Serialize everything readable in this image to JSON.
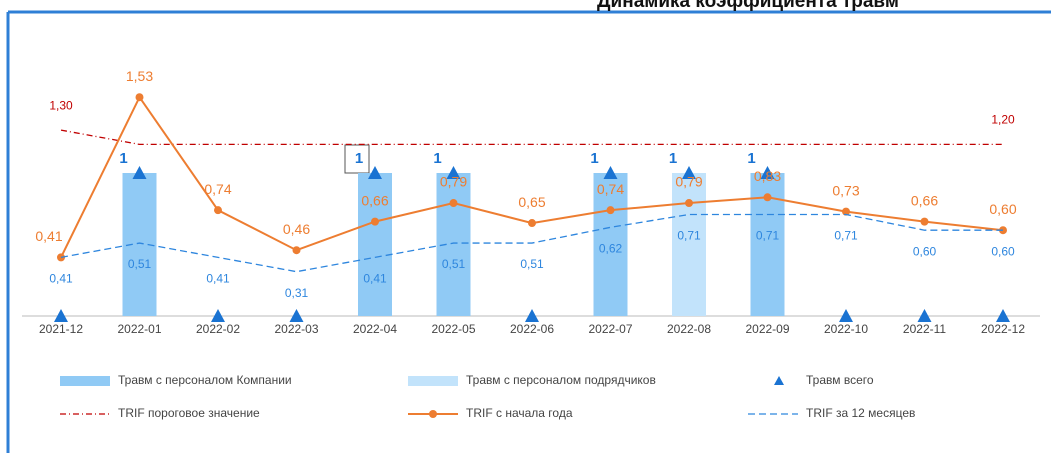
{
  "chart_data": {
    "type": "bar",
    "title": "Динамика коэффициента травм",
    "categories": [
      "2021-12",
      "2022-01",
      "2022-02",
      "2022-03",
      "2022-04",
      "2022-05",
      "2022-06",
      "2022-07",
      "2022-08",
      "2022-09",
      "2022-10",
      "2022-11",
      "2022-12"
    ],
    "ylim": [
      0,
      2
    ],
    "y2lim": [
      0,
      2
    ],
    "series": [
      {
        "name": "Травм с персоналом Компании",
        "type": "bar",
        "color": "#90caf5",
        "values": [
          0,
          1,
          0,
          0,
          1,
          1,
          0,
          1,
          0,
          1,
          0,
          0,
          0
        ]
      },
      {
        "name": "Травм с персоналом подрядчиков",
        "type": "bar",
        "color": "#c2e3fb",
        "values": [
          0,
          0,
          0,
          0,
          0,
          0,
          0,
          0,
          1,
          0,
          0,
          0,
          0
        ]
      },
      {
        "name": "Травм всего",
        "type": "scatter",
        "color": "#1a73d2",
        "values": [
          0,
          1,
          0,
          0,
          1,
          1,
          0,
          1,
          1,
          1,
          0,
          0,
          0
        ]
      },
      {
        "name": "TRIF пороговое значение",
        "type": "line",
        "axis": "y2",
        "style": "dashdot",
        "color": "#c00000",
        "values": [
          1.3,
          1.2,
          1.2,
          1.2,
          1.2,
          1.2,
          1.2,
          1.2,
          1.2,
          1.2,
          1.2,
          1.2,
          1.2
        ],
        "value_labels": [
          "1,30",
          null,
          null,
          null,
          null,
          null,
          null,
          null,
          null,
          null,
          null,
          null,
          "1,20"
        ]
      },
      {
        "name": "TRIF с начала года",
        "type": "line",
        "axis": "y2",
        "style": "solid",
        "color": "#ed7d31",
        "values": [
          0.41,
          1.53,
          0.74,
          0.46,
          0.66,
          0.79,
          0.65,
          0.74,
          0.79,
          0.83,
          0.73,
          0.66,
          0.6
        ],
        "value_labels": [
          "0,41",
          "1,53",
          "0,74",
          "0,46",
          "0,66",
          "0,79",
          "0,65",
          "0,74",
          "0,79",
          "0,83",
          "0,73",
          "0,66",
          "0,60"
        ]
      },
      {
        "name": "TRIF за 12 месяцев",
        "type": "line",
        "axis": "y2",
        "style": "dashed",
        "color": "#2e86de",
        "values": [
          0.41,
          0.51,
          0.41,
          0.31,
          0.41,
          0.51,
          0.51,
          0.62,
          0.71,
          0.71,
          0.71,
          0.6,
          0.6
        ],
        "value_labels": [
          "0,41",
          "0,51",
          "0,41",
          "0,31",
          "0,41",
          "0,51",
          "0,51",
          "0,62",
          "0,71",
          "0,71",
          "0,71",
          "0,60",
          "0,60"
        ]
      }
    ]
  }
}
